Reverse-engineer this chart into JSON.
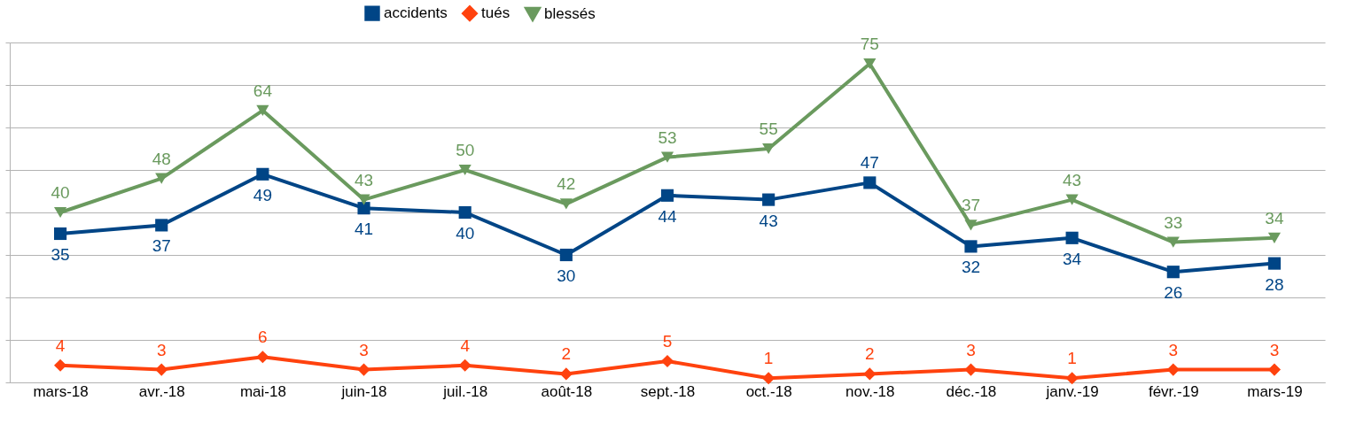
{
  "chart_data": {
    "type": "line",
    "categories": [
      "mars-18",
      "avr.-18",
      "mai-18",
      "juin-18",
      "juil.-18",
      "août-18",
      "sept.-18",
      "oct.-18",
      "nov.-18",
      "déc.-18",
      "janv.-19",
      "févr.-19",
      "mars-19"
    ],
    "series": [
      {
        "name": "accidents",
        "color": "#004586",
        "marker": "square",
        "values": [
          35,
          37,
          49,
          41,
          40,
          30,
          44,
          43,
          47,
          32,
          34,
          26,
          28
        ]
      },
      {
        "name": "tués",
        "color": "#ff420e",
        "marker": "diamond",
        "values": [
          4,
          3,
          6,
          3,
          4,
          2,
          5,
          1,
          2,
          3,
          1,
          3,
          3
        ]
      },
      {
        "name": "blessés",
        "color": "#6a9a5e",
        "marker": "triangle",
        "values": [
          40,
          48,
          64,
          43,
          50,
          42,
          53,
          55,
          75,
          37,
          43,
          33,
          34
        ]
      }
    ],
    "ylim": [
      0,
      80
    ],
    "yticks": [
      {
        "value": 0,
        "label": null
      },
      {
        "value": 10,
        "label": null
      },
      {
        "value": 20,
        "label": null
      },
      {
        "value": 30,
        "label": null
      },
      {
        "value": 40,
        "label": null
      },
      {
        "value": 50,
        "label": null
      },
      {
        "value": 60,
        "label": null
      },
      {
        "value": 70,
        "label": null
      },
      {
        "value": 80,
        "label": null
      }
    ],
    "tick_labels": "x",
    "grid": "y",
    "legend": "top",
    "data_labels": true,
    "line_style": "solid"
  }
}
